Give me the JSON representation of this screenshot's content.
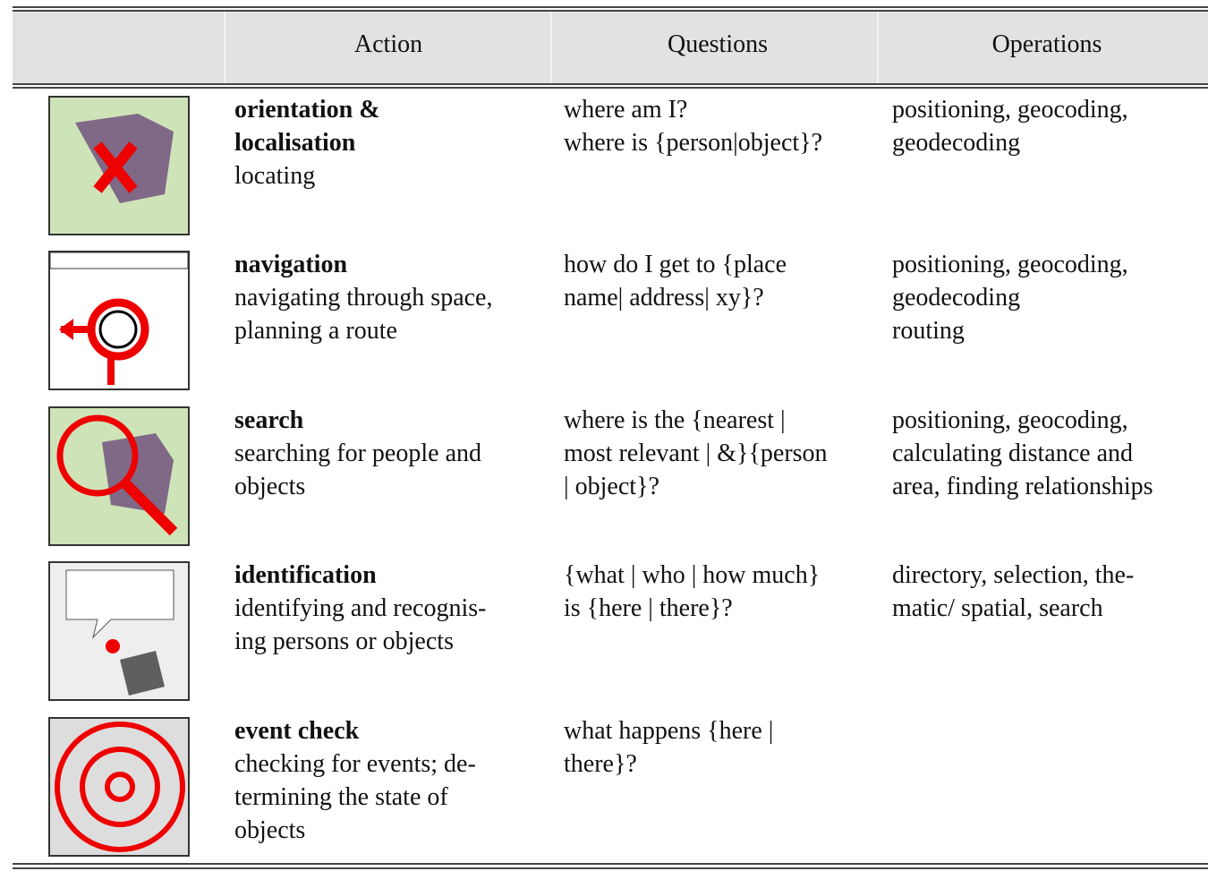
{
  "header": {
    "columns": [
      "Action",
      "Questions",
      "Operations"
    ]
  },
  "table": {
    "rows": [
      {
        "title": [
          "orientation &",
          "localisation"
        ],
        "description": [
          "locating"
        ],
        "questions": [
          "where am I?",
          "where is {person|object}?"
        ],
        "operations": [
          "positioning, geocoding,",
          "geodecoding"
        ]
      },
      {
        "title": [
          "navigation"
        ],
        "description": [
          "navigating through space,",
          "planning a route"
        ],
        "questions": [
          "how do I get to {place",
          "name| address| xy}?"
        ],
        "operations": [
          "positioning, geocoding,",
          "geodecoding",
          "routing"
        ]
      },
      {
        "title": [
          "search"
        ],
        "description": [
          "searching for people and",
          "objects"
        ],
        "questions": [
          "where is the {nearest |",
          "most relevant | &}{person",
          "| object}?"
        ],
        "operations": [
          "positioning, geocoding,",
          "calculating distance and",
          "area, finding relationships"
        ]
      },
      {
        "title": [
          "identification"
        ],
        "description": [
          "identifying and recognis-",
          "ing persons or objects"
        ],
        "questions": [
          "{what | who | how much}",
          "is {here | there}?"
        ],
        "operations": [
          "directory, selection, the-",
          "matic/ spatial, search"
        ]
      },
      {
        "title": [
          "event check"
        ],
        "description": [
          "checking for events; de-",
          "termining the state of",
          "objects"
        ],
        "questions": [
          "what happens {here |",
          "there}?"
        ],
        "operations": []
      }
    ]
  }
}
